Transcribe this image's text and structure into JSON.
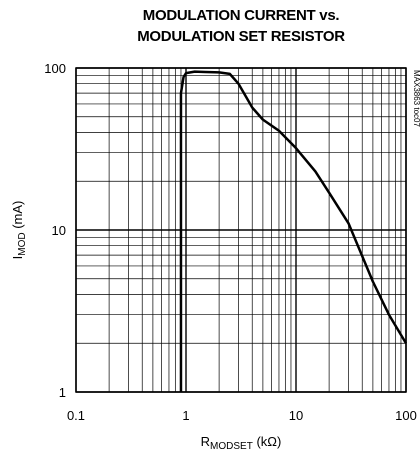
{
  "chart_data": {
    "type": "line",
    "title": [
      "MODULATION CURRENT vs.",
      "MODULATION SET RESISTOR"
    ],
    "xlabel": {
      "text": "R",
      "subscript": "MODSET",
      "suffix": " (kΩ)"
    },
    "ylabel": {
      "text": "I",
      "subscript": "MOD",
      "suffix": " (mA)"
    },
    "annotation": "MAX3863 toc07",
    "x": [
      0.9,
      0.9,
      0.95,
      1,
      1.2,
      1.5,
      2,
      2.5,
      3,
      4,
      5,
      7,
      10,
      15,
      20,
      30,
      50,
      70,
      100
    ],
    "series": [
      {
        "color": "#000000",
        "values": [
          1,
          70,
          88,
          93,
          95,
          94.5,
          94,
          92,
          80,
          57,
          48,
          41,
          32,
          23,
          17,
          11,
          4.8,
          3,
          2
        ]
      }
    ],
    "xlim": [
      0.1,
      100
    ],
    "ylim": [
      1,
      100
    ],
    "xticks": [
      0.1,
      1,
      10,
      100
    ],
    "yticks": [
      1,
      10,
      100
    ],
    "xlog": true,
    "ylog": true,
    "grid": true
  }
}
